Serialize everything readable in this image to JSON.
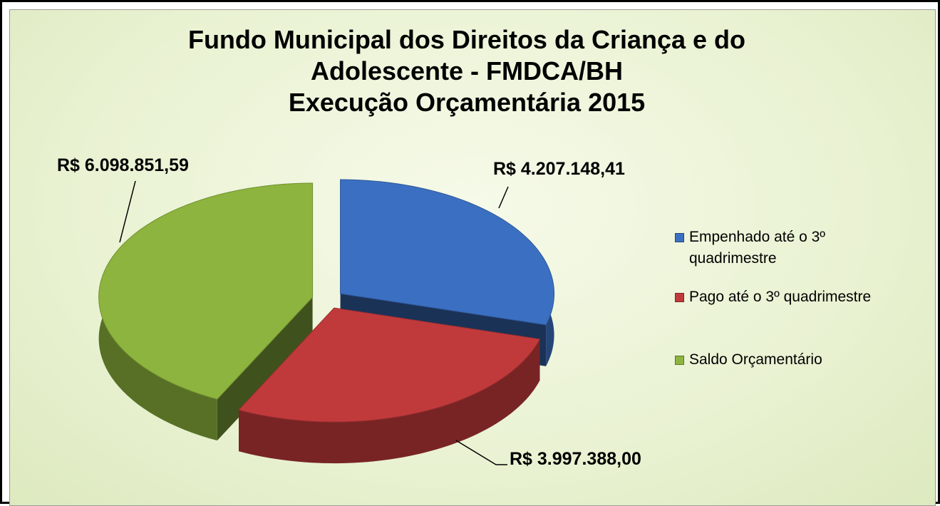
{
  "chart_data": {
    "type": "pie",
    "title": [
      "Fundo Municipal dos Direitos da Criança e do",
      "Adolescente - FMDCA/BH",
      "Execução Orçamentária 2015"
    ],
    "categories": [
      "Empenhado até o 3º quadrimestre",
      "Pago até o 3º quadrimestre",
      "Saldo Orçamentário"
    ],
    "values": [
      4207148.41,
      3997388.0,
      6098851.59
    ],
    "value_labels": [
      "R$ 4.207.148,41",
      "R$ 3.997.388,00",
      "R$ 6.098.851,59"
    ],
    "colors": [
      "#3b6fc1",
      "#c13a3b",
      "#8db43e"
    ],
    "legend": "right"
  }
}
